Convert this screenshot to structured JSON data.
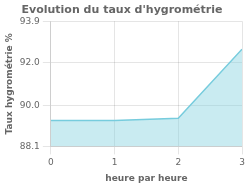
{
  "chart_data": {
    "type": "area",
    "title": "Evolution du taux d'hygrométrie",
    "x_label": "heure par heure",
    "y_label": "Taux hygrométrie %",
    "x": [
      0,
      1,
      2,
      3
    ],
    "values": [
      89.3,
      89.3,
      89.4,
      92.6
    ],
    "color": "#77ccdd",
    "xlim": [
      0,
      3
    ],
    "ylim": [
      88.1,
      93.9
    ],
    "xticks": [
      0,
      1,
      2,
      3
    ],
    "yticks": [
      88.1,
      {
        "value": 90.0,
        "label": "90.0"
      },
      {
        "value": 92.0,
        "label": "92.0"
      },
      93.9
    ],
    "grid": true
  }
}
